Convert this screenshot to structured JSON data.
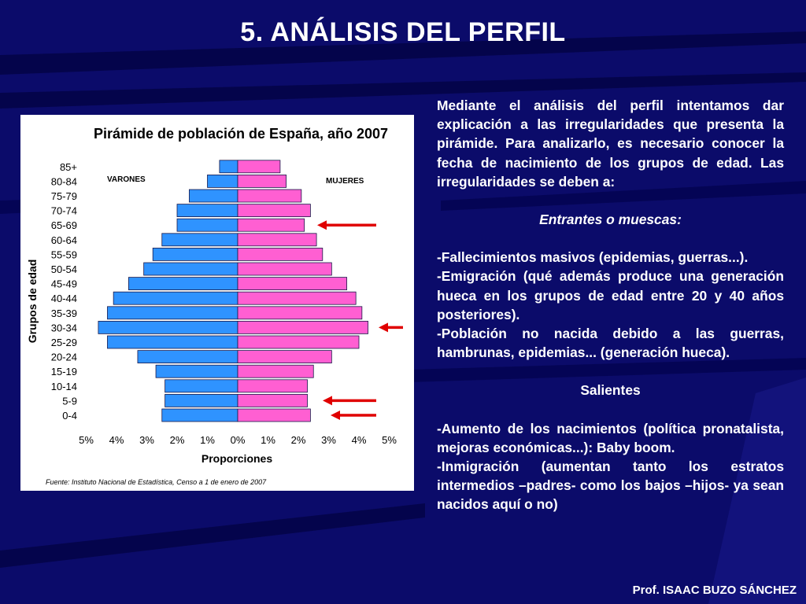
{
  "slide": {
    "title": "5. ANÁLISIS DEL PERFIL",
    "footer": "Prof. ISAAC BUZO SÁNCHEZ"
  },
  "colors": {
    "background": "#0b0b6a",
    "male_bar": "#2f93ff",
    "female_bar": "#ff5fd2",
    "arrow": "#e00000"
  },
  "text": {
    "intro": "Mediante el análisis del perfil intentamos dar explicación a las irregularidades que presenta la pirámide. Para analizarlo, es necesario conocer la fecha de nacimiento de los grupos de edad. Las irregularidades se deben a:",
    "entrantes_heading": "Entrantes o muescas:",
    "entrantes": [
      "-Fallecimientos masivos (epidemias, guerras...).",
      "-Emigración (qué además produce una generación hueca en los grupos de edad entre 20 y 40 años posteriores).",
      "-Población no nacida debido a las guerras, hambrunas, epidemias... (generación hueca)."
    ],
    "salientes_heading": "Salientes",
    "salientes": [
      "-Aumento de los nacimientos (política pronatalista, mejoras económicas...): Baby boom.",
      "-Inmigración (aumentan tanto los estratos intermedios –padres- como los bajos –hijos- ya sean nacidos aquí o no)"
    ]
  },
  "chart_data": {
    "type": "bar",
    "orientation": "horizontal-pyramid",
    "title": "Pirámide de población de España, año 2007",
    "xlabel": "Proporciones",
    "ylabel": "Grupos de edad",
    "source": "Fuente: Instituto Nacional de Estadística, Censo a 1 de enero de 2007",
    "xlim": [
      -5,
      5
    ],
    "x_ticks": [
      -5,
      -4,
      -3,
      -2,
      -1,
      0,
      1,
      2,
      3,
      4,
      5
    ],
    "x_tick_labels": [
      "5%",
      "4%",
      "3%",
      "2%",
      "1%",
      "0%",
      "1%",
      "2%",
      "3%",
      "4%",
      "5%"
    ],
    "categories": [
      "0-4",
      "5-9",
      "10-14",
      "15-19",
      "20-24",
      "25-29",
      "30-34",
      "35-39",
      "40-44",
      "45-49",
      "50-54",
      "55-59",
      "60-64",
      "65-69",
      "70-74",
      "75-79",
      "80-84",
      "85+"
    ],
    "series": [
      {
        "name": "VARONES",
        "values": [
          2.5,
          2.4,
          2.4,
          2.7,
          3.3,
          4.3,
          4.6,
          4.3,
          4.1,
          3.6,
          3.1,
          2.8,
          2.5,
          2.0,
          2.0,
          1.6,
          1.0,
          0.6
        ]
      },
      {
        "name": "MUJERES",
        "values": [
          2.4,
          2.3,
          2.3,
          2.5,
          3.1,
          4.0,
          4.3,
          4.1,
          3.9,
          3.6,
          3.1,
          2.8,
          2.6,
          2.2,
          2.4,
          2.1,
          1.6,
          1.4
        ]
      }
    ],
    "arrows_at": [
      "65-69",
      "30-34",
      "5-9",
      "0-4"
    ],
    "grid": false,
    "legend": "top-left / top-right labels"
  }
}
